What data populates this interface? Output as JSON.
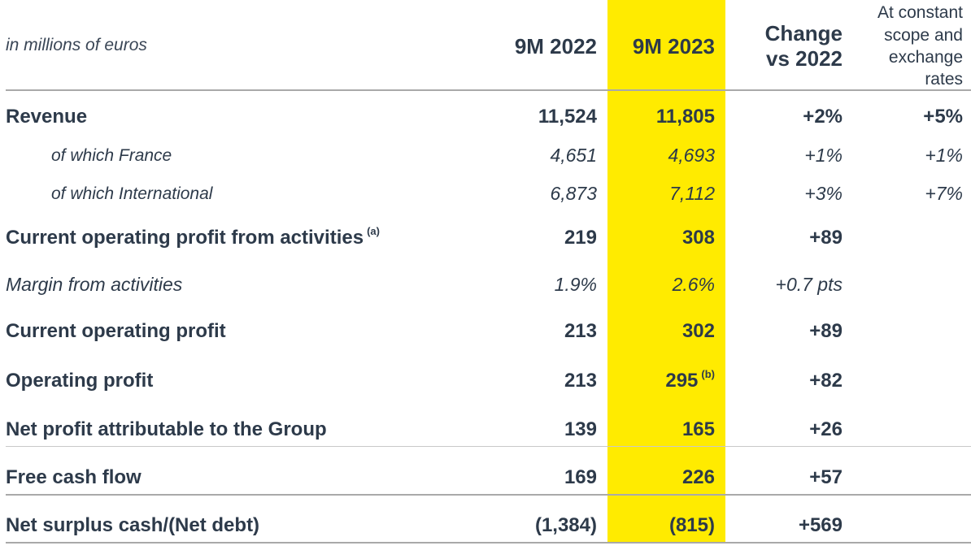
{
  "header": {
    "unit_label": "in millions of euros",
    "col_2022": "9M 2022",
    "col_2023": "9M 2023",
    "col_change_l1": "Change",
    "col_change_l2": "vs 2022",
    "col_const_l1": "At constant",
    "col_const_l2": "scope and",
    "col_const_l3": "exchange",
    "col_const_l4": "rates"
  },
  "rows": {
    "revenue": {
      "label": "Revenue",
      "v2022": "11,524",
      "v2023": "11,805",
      "change": "+2%",
      "constant": "+5%"
    },
    "france": {
      "label": "of which France",
      "v2022": "4,651",
      "v2023": "4,693",
      "change": "+1%",
      "constant": "+1%"
    },
    "international": {
      "label": "of which International",
      "v2022": "6,873",
      "v2023": "7,112",
      "change": "+3%",
      "constant": "+7%"
    },
    "cop_activities": {
      "label": "Current operating profit from activities",
      "note": "(a)",
      "v2022": "219",
      "v2023": "308",
      "change": "+89"
    },
    "margin": {
      "label": "Margin from activities",
      "v2022": "1.9%",
      "v2023": "2.6%",
      "change": "+0.7 pts"
    },
    "cop": {
      "label": "Current operating profit",
      "v2022": "213",
      "v2023": "302",
      "change": "+89"
    },
    "op": {
      "label": "Operating profit",
      "v2022": "213",
      "v2023": "295",
      "note": "(b)",
      "change": "+82"
    },
    "net_profit": {
      "label": "Net profit attributable to the Group",
      "v2022": "139",
      "v2023": "165",
      "change": "+26"
    },
    "fcf": {
      "label": "Free cash flow",
      "v2022": "169",
      "v2023": "226",
      "change": "+57"
    },
    "net_cash": {
      "label": "Net surplus cash/(Net debt)",
      "v2022": "(1,384)",
      "v2023": "(815)",
      "change": "+569"
    }
  }
}
